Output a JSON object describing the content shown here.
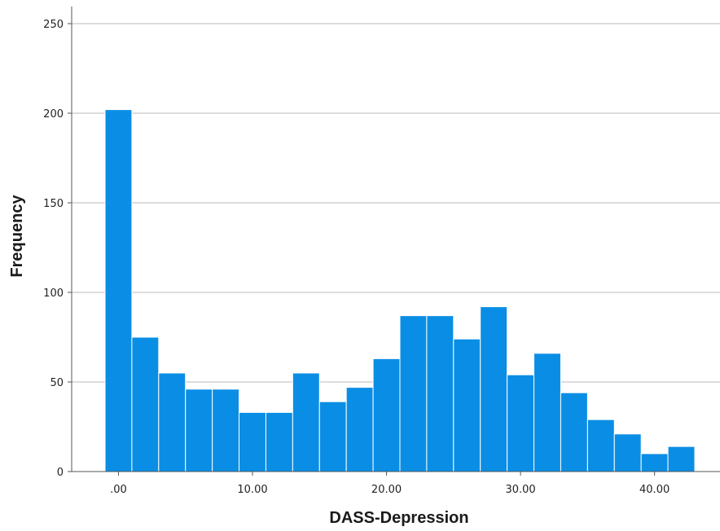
{
  "chart_data": {
    "type": "bar",
    "xlabel": "DASS-Depression",
    "ylabel": "Frequency",
    "ylim": [
      0,
      250
    ],
    "xlim": [
      -1.0,
      43.0
    ],
    "y_ticks": [
      0,
      50,
      100,
      150,
      200,
      250
    ],
    "y_tick_labels": [
      "0",
      "50",
      "100",
      "150",
      "200",
      "250"
    ],
    "x_ticks": [
      0,
      10,
      20,
      30,
      40
    ],
    "x_tick_labels": [
      ".00",
      "10.00",
      "20.00",
      "30.00",
      "40.00"
    ],
    "grid": "horizontal",
    "bar_color": "#0a8ee5",
    "bin_width": 2,
    "bin_starts": [
      -1,
      1,
      3,
      5,
      7,
      9,
      11,
      13,
      15,
      17,
      19,
      21,
      23,
      25,
      27,
      29,
      31,
      33,
      35,
      37,
      39,
      41
    ],
    "values": [
      202,
      75,
      55,
      46,
      46,
      33,
      33,
      55,
      39,
      47,
      63,
      87,
      87,
      74,
      92,
      54,
      66,
      44,
      29,
      21,
      10,
      14
    ]
  }
}
